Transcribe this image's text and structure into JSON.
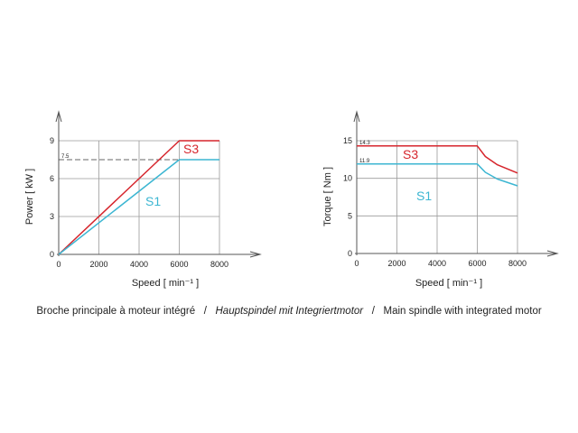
{
  "chart_data": [
    {
      "type": "line",
      "title": "",
      "xlabel": "Speed",
      "xunit": "[ min⁻¹ ]",
      "ylabel": "Power",
      "yunit": "[ kW ]",
      "xlim": [
        0,
        8000
      ],
      "ylim": [
        0,
        9
      ],
      "xticks": [
        0,
        2000,
        4000,
        6000,
        8000
      ],
      "yticks": [
        0,
        3,
        6,
        9
      ],
      "grid": true,
      "reference": {
        "value": 7.5,
        "label": "7.5"
      },
      "series": [
        {
          "name": "S3",
          "color": "#d6252c",
          "points": [
            [
              0,
              0
            ],
            [
              6000,
              9
            ],
            [
              8000,
              9
            ]
          ]
        },
        {
          "name": "S1",
          "color": "#3cb6d2",
          "points": [
            [
              0,
              0
            ],
            [
              6000,
              7.5
            ],
            [
              8000,
              7.5
            ]
          ]
        }
      ]
    },
    {
      "type": "line",
      "title": "",
      "xlabel": "Speed",
      "xunit": "[ min⁻¹ ]",
      "ylabel": "Torque",
      "yunit": "[ Nm ]",
      "xlim": [
        0,
        8000
      ],
      "ylim": [
        0,
        15
      ],
      "xticks": [
        0,
        2000,
        4000,
        6000,
        8000
      ],
      "yticks": [
        0,
        5,
        10,
        15
      ],
      "grid": true,
      "annotations": [
        {
          "value": 14.3,
          "label": "14.3"
        },
        {
          "value": 11.9,
          "label": "11.9"
        }
      ],
      "series": [
        {
          "name": "S3",
          "color": "#d6252c",
          "points": [
            [
              0,
              14.3
            ],
            [
              6000,
              14.3
            ],
            [
              6400,
              12.9
            ],
            [
              7000,
              11.8
            ],
            [
              8000,
              10.7
            ]
          ]
        },
        {
          "name": "S1",
          "color": "#3cb6d2",
          "points": [
            [
              0,
              11.9
            ],
            [
              6000,
              11.9
            ],
            [
              6400,
              10.8
            ],
            [
              7000,
              9.9
            ],
            [
              8000,
              9.0
            ]
          ]
        }
      ]
    }
  ],
  "caption": {
    "french": "Broche principale à moteur intégré",
    "separator": "/",
    "german": "Hauptspindel mit Integriertmotor",
    "english": "Main spindle with integrated motor"
  }
}
